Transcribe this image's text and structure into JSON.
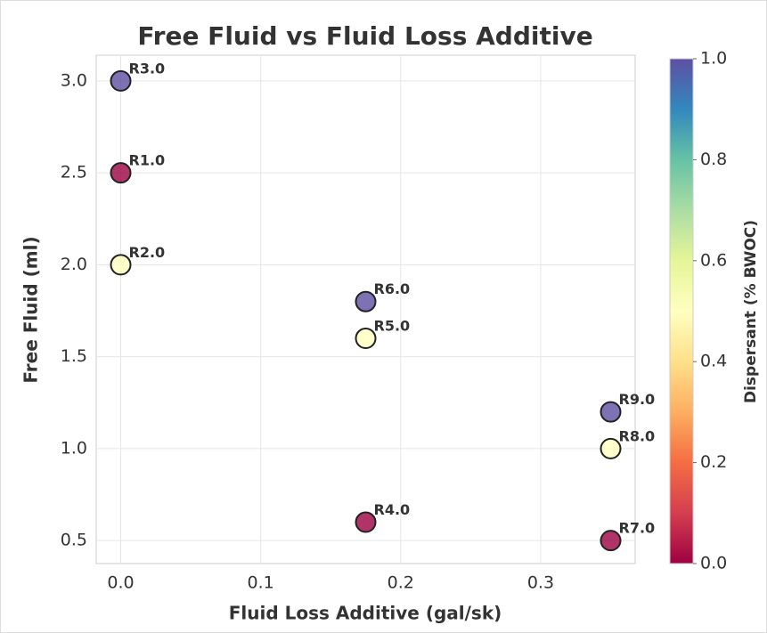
{
  "chart_data": {
    "type": "scatter",
    "title": "Free Fluid vs Fluid Loss Additive",
    "xlabel": "Fluid Loss Additive (gal/sk)",
    "ylabel": "Free Fluid (ml)",
    "colorbar_label": "Dispersant (% BWOC)",
    "labels": [
      "R1.0",
      "R2.0",
      "R3.0",
      "R4.0",
      "R5.0",
      "R6.0",
      "R7.0",
      "R8.0",
      "R9.0"
    ],
    "x": [
      0,
      0,
      0,
      0.175,
      0.175,
      0.175,
      0.35,
      0.35,
      0.35
    ],
    "y": [
      2.5,
      2.0,
      3.0,
      0.6,
      1.6,
      1.8,
      0.5,
      1.0,
      1.2
    ],
    "color_values": [
      0,
      0.5,
      1,
      0,
      0.5,
      1,
      0,
      0.5,
      1
    ],
    "colors": [
      "#9e0142",
      "#d53e4f",
      "#f46d43",
      "#fdae61",
      "#fee08b",
      "#ffffbf",
      "#e6f598",
      "#abdda4",
      "#66c2a5",
      "#3288bd",
      "#5e4fa2"
    ],
    "alpha": 0.8,
    "xlim": [
      -0.0175,
      0.3675
    ],
    "ylim": [
      0.375,
      3.14
    ],
    "clim": [
      0,
      1
    ],
    "xticks": [
      {
        "value": 0,
        "label": "0.0"
      },
      0.1,
      0.2,
      0.3
    ],
    "yticks": [
      0.5,
      {
        "value": 1,
        "label": "1.0"
      },
      1.5,
      {
        "value": 2,
        "label": "2.0"
      },
      2.5,
      {
        "value": 3,
        "label": "3.0"
      }
    ],
    "cticks": [
      {
        "value": 0,
        "label": "0.0"
      },
      0.2,
      0.4,
      0.6,
      0.8,
      {
        "value": 1,
        "label": "1.0"
      }
    ],
    "grid": true
  }
}
